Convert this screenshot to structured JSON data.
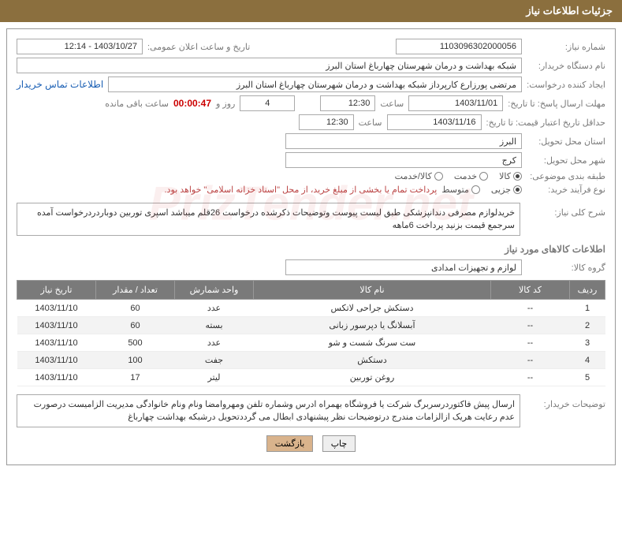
{
  "header": {
    "title": "جزئیات اطلاعات نیاز"
  },
  "fields": {
    "req_no_label": "شماره نیاز:",
    "req_no": "1103096302000056",
    "ann_date_label": "تاریخ و ساعت اعلان عمومی:",
    "ann_date": "1403/10/27 - 12:14",
    "buyer_org_label": "نام دستگاه خریدار:",
    "buyer_org": "شبکه بهداشت و درمان شهرستان چهارباغ استان البرز",
    "requester_label": "ایجاد کننده درخواست:",
    "requester": "مرتضی پورزارع کارپرداز شبکه بهداشت و درمان شهرستان چهارباغ استان البرز",
    "contact_link": "اطلاعات تماس خریدار",
    "deadline_label": "مهلت ارسال پاسخ:",
    "until_label": "تا تاریخ:",
    "deadline_date": "1403/11/01",
    "time_label": "ساعت",
    "deadline_time": "12:30",
    "days": "4",
    "days_label": "روز و",
    "countdown": "00:00:47",
    "remain_label": "ساعت باقی مانده",
    "min_valid_label": "حداقل تاریخ اعتبار قیمت:",
    "min_valid_date": "1403/11/16",
    "min_valid_time": "12:30",
    "province_label": "استان محل تحویل:",
    "province": "البرز",
    "city_label": "شهر محل تحویل:",
    "city": "کرج",
    "category_label": "طبقه بندی موضوعی:",
    "cat_goods": "کالا",
    "cat_service": "خدمت",
    "cat_both": "کالا/خدمت",
    "purchase_type_label": "نوع فرآیند خرید:",
    "pt_small": "جزیی",
    "pt_medium": "متوسط",
    "treasury_note": "پرداخت تمام یا بخشی از مبلغ خرید، از محل \"اسناد خزانه اسلامی\" خواهد بود.",
    "summary_label": "شرح کلی نیاز:",
    "summary": "خریدلوازم مصرفی دندانپزشکی طبق لیست پیوست وتوضیحات ذکرشده درخواست 26قلم میباشد اسپری توربین دوباردردرخواست آمده سرجمع قیمت بزنید پرداخت 6ماهه",
    "goods_info_title": "اطلاعات کالاهای مورد نیاز",
    "goods_group_label": "گروه کالا:",
    "goods_group": "لوازم و تجهیزات امدادی",
    "buyer_desc_label": "توضیحات خریدار:",
    "buyer_desc": "ارسال پیش فاکتوردرسربرگ شرکت یا فروشگاه بهمراه ادرس وشماره تلفن ومهروامضا ونام ونام خانوادگی مدیریت الزامیست درصورت عدم رعایت هریک ازالزامات مندرج درتوضیحات نظر پیشنهادی ابطال می گرددتحویل درشبکه بهداشت چهارباغ"
  },
  "table": {
    "headers": {
      "row": "ردیف",
      "code": "کد کالا",
      "name": "نام کالا",
      "unit": "واحد شمارش",
      "qty": "تعداد / مقدار",
      "date": "تاریخ نیاز"
    },
    "rows": [
      {
        "n": "1",
        "code": "--",
        "name": "دستکش جراحی لاتکس",
        "unit": "عدد",
        "qty": "60",
        "date": "1403/11/10"
      },
      {
        "n": "2",
        "code": "--",
        "name": "آبسلانگ یا دپرسور زبانی",
        "unit": "بسته",
        "qty": "60",
        "date": "1403/11/10"
      },
      {
        "n": "3",
        "code": "--",
        "name": "ست سرنگ شست و شو",
        "unit": "عدد",
        "qty": "500",
        "date": "1403/11/10"
      },
      {
        "n": "4",
        "code": "--",
        "name": "دستکش",
        "unit": "جفت",
        "qty": "100",
        "date": "1403/11/10"
      },
      {
        "n": "5",
        "code": "--",
        "name": "روغن توربین",
        "unit": "لیتر",
        "qty": "17",
        "date": "1403/11/10"
      }
    ]
  },
  "buttons": {
    "print": "چاپ",
    "back": "بازگشت"
  },
  "watermark": "PrizTender.net"
}
